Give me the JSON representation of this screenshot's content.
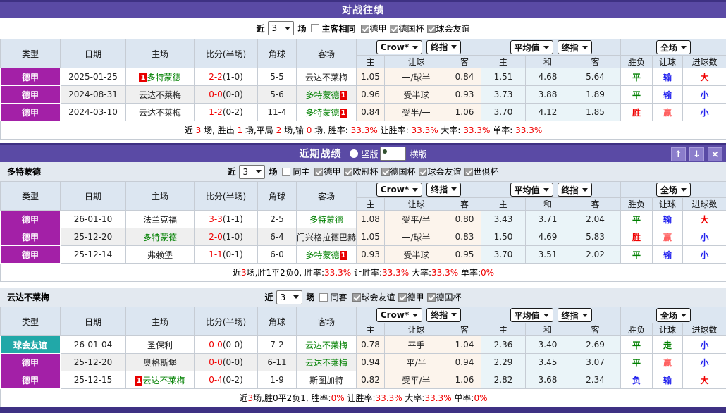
{
  "colors": {
    "green": "#008000",
    "red": "#f00000",
    "blue": "#2222ee",
    "pink": "#ff6060",
    "black": "#222222"
  },
  "header": {
    "cols": [
      "类型",
      "日期",
      "主场",
      "比分(半场)",
      "角球",
      "客场"
    ],
    "sub": [
      "主",
      "让球",
      "客",
      "主",
      "和",
      "客",
      "胜负",
      "让球",
      "进球数"
    ],
    "dd_crow": "Crow*",
    "dd_final": "终指",
    "dd_avg": "平均值",
    "dd_full": "全场"
  },
  "h2h": {
    "title": "对战往绩",
    "filter": {
      "near": "近",
      "count": "3",
      "games": "场",
      "toggle": "主客相同",
      "leagues": [
        "德甲",
        "德国杯",
        "球会友谊"
      ]
    },
    "rows": [
      {
        "league": "德甲",
        "league_bg": "#a320a7",
        "date": "2025-01-25",
        "home": {
          "name": "多特蒙德",
          "color": "green",
          "badge": "1",
          "badge_pos": "before"
        },
        "score": "2-2",
        "half": "(1-0)",
        "corner": "5-5",
        "away": {
          "name": "云达不莱梅",
          "color": "black"
        },
        "crow": [
          "1.05",
          "一/球半",
          "0.84"
        ],
        "avg": [
          "1.51",
          "4.68",
          "5.64"
        ],
        "outcome": [
          [
            "平",
            "green"
          ],
          [
            "输",
            "blue"
          ],
          [
            "大",
            "red"
          ]
        ]
      },
      {
        "league": "德甲",
        "league_bg": "#a320a7",
        "date": "2024-08-31",
        "home": {
          "name": "云达不莱梅",
          "color": "black"
        },
        "score": "0-0",
        "half": "(0-0)",
        "corner": "5-6",
        "away": {
          "name": "多特蒙德",
          "color": "green",
          "badge": "1",
          "badge_pos": "after"
        },
        "crow": [
          "0.96",
          "受半球",
          "0.93"
        ],
        "avg": [
          "3.73",
          "3.88",
          "1.89"
        ],
        "outcome": [
          [
            "平",
            "green"
          ],
          [
            "输",
            "blue"
          ],
          [
            "小",
            "blue"
          ]
        ]
      },
      {
        "league": "德甲",
        "league_bg": "#a320a7",
        "date": "2024-03-10",
        "home": {
          "name": "云达不莱梅",
          "color": "black"
        },
        "score": "1-2",
        "half": "(0-2)",
        "corner": "11-4",
        "away": {
          "name": "多特蒙德",
          "color": "green",
          "badge": "1",
          "badge_pos": "after"
        },
        "crow": [
          "0.84",
          "受半/一",
          "1.06"
        ],
        "avg": [
          "3.70",
          "4.12",
          "1.85"
        ],
        "outcome": [
          [
            "胜",
            "red"
          ],
          [
            "赢",
            "pink"
          ],
          [
            "小",
            "blue"
          ]
        ]
      }
    ],
    "summary": [
      [
        "近 ",
        "k"
      ],
      [
        "3",
        "r"
      ],
      [
        " 场, 胜出 ",
        "k"
      ],
      [
        "1",
        "r"
      ],
      [
        " 场,平局 ",
        "k"
      ],
      [
        "2",
        "r"
      ],
      [
        " 场,输 ",
        "k"
      ],
      [
        "0",
        "r"
      ],
      [
        " 场, 胜率: ",
        "k"
      ],
      [
        "33.3%",
        "r"
      ],
      [
        " 让胜率: ",
        "k"
      ],
      [
        "33.3%",
        "r"
      ],
      [
        " 大率: ",
        "k"
      ],
      [
        "33.3%",
        "r"
      ],
      [
        " 单率: ",
        "k"
      ],
      [
        "33.3%",
        "r"
      ]
    ]
  },
  "recent": {
    "title": "近期战绩",
    "radio_vertical": "竖版",
    "radio_horizontal": "横版",
    "btn_up": "↑",
    "btn_down": "↓",
    "btn_close": "×",
    "team1": {
      "name": "多特蒙德",
      "filter": {
        "near": "近",
        "count": "3",
        "games": "场",
        "toggle": "同主",
        "leagues": [
          "德甲",
          "欧冠杯",
          "德国杯",
          "球会友谊",
          "世俱杯"
        ]
      },
      "rows": [
        {
          "league": "德甲",
          "league_bg": "#a320a7",
          "date": "26-01-10",
          "home": {
            "name": "法兰克福",
            "color": "black"
          },
          "score": "3-3",
          "half": "(1-1)",
          "corner": "2-5",
          "away": {
            "name": "多特蒙德",
            "color": "green"
          },
          "crow": [
            "1.08",
            "受平/半",
            "0.80"
          ],
          "avg": [
            "3.43",
            "3.71",
            "2.04"
          ],
          "outcome": [
            [
              "平",
              "green"
            ],
            [
              "输",
              "blue"
            ],
            [
              "大",
              "red"
            ]
          ]
        },
        {
          "league": "德甲",
          "league_bg": "#a320a7",
          "date": "25-12-20",
          "home": {
            "name": "多特蒙德",
            "color": "green"
          },
          "score": "2-0",
          "half": "(1-0)",
          "corner": "6-4",
          "away": {
            "name": "门兴格拉德巴赫",
            "color": "black"
          },
          "crow": [
            "1.05",
            "一/球半",
            "0.83"
          ],
          "avg": [
            "1.50",
            "4.69",
            "5.83"
          ],
          "outcome": [
            [
              "胜",
              "red"
            ],
            [
              "赢",
              "pink"
            ],
            [
              "小",
              "blue"
            ]
          ]
        },
        {
          "league": "德甲",
          "league_bg": "#a320a7",
          "date": "25-12-14",
          "home": {
            "name": "弗赖堡",
            "color": "black"
          },
          "score": "1-1",
          "half": "(0-1)",
          "corner": "6-0",
          "away": {
            "name": "多特蒙德",
            "color": "green",
            "badge": "1",
            "badge_pos": "after"
          },
          "crow": [
            "0.93",
            "受半球",
            "0.95"
          ],
          "avg": [
            "3.70",
            "3.51",
            "2.02"
          ],
          "outcome": [
            [
              "平",
              "green"
            ],
            [
              "输",
              "blue"
            ],
            [
              "小",
              "blue"
            ]
          ]
        }
      ],
      "summary": [
        [
          "近",
          "k"
        ],
        [
          "3",
          "r"
        ],
        [
          "场,胜1平2负0, 胜率:",
          "k"
        ],
        [
          "33.3%",
          "r"
        ],
        [
          " 让胜率:",
          "k"
        ],
        [
          "33.3%",
          "r"
        ],
        [
          " 大率:",
          "k"
        ],
        [
          "33.3%",
          "r"
        ],
        [
          " 单率:",
          "k"
        ],
        [
          "0%",
          "r"
        ]
      ]
    },
    "team2": {
      "name": "云达不莱梅",
      "filter": {
        "near": "近",
        "count": "3",
        "games": "场",
        "toggle": "同客",
        "leagues": [
          "球会友谊",
          "德甲",
          "德国杯"
        ]
      },
      "rows": [
        {
          "league": "球会友谊",
          "league_bg": "#21a8a8",
          "date": "26-01-04",
          "home": {
            "name": "圣保利",
            "color": "black"
          },
          "score": "0-0",
          "half": "(0-0)",
          "corner": "7-2",
          "away": {
            "name": "云达不莱梅",
            "color": "green"
          },
          "crow": [
            "0.78",
            "平手",
            "1.04"
          ],
          "avg": [
            "2.36",
            "3.40",
            "2.69"
          ],
          "outcome": [
            [
              "平",
              "green"
            ],
            [
              "走",
              "green"
            ],
            [
              "小",
              "blue"
            ]
          ]
        },
        {
          "league": "德甲",
          "league_bg": "#a320a7",
          "date": "25-12-20",
          "home": {
            "name": "奥格斯堡",
            "color": "black"
          },
          "score": "0-0",
          "half": "(0-0)",
          "corner": "6-11",
          "away": {
            "name": "云达不莱梅",
            "color": "green"
          },
          "crow": [
            "0.94",
            "平/半",
            "0.94"
          ],
          "avg": [
            "2.29",
            "3.45",
            "3.07"
          ],
          "outcome": [
            [
              "平",
              "green"
            ],
            [
              "赢",
              "pink"
            ],
            [
              "小",
              "blue"
            ]
          ]
        },
        {
          "league": "德甲",
          "league_bg": "#a320a7",
          "date": "25-12-15",
          "home": {
            "name": "云达不莱梅",
            "color": "green",
            "badge": "1",
            "badge_pos": "before"
          },
          "score": "0-4",
          "half": "(0-2)",
          "corner": "1-9",
          "away": {
            "name": "斯图加特",
            "color": "black"
          },
          "crow": [
            "0.82",
            "受平/半",
            "1.06"
          ],
          "avg": [
            "2.82",
            "3.68",
            "2.34"
          ],
          "outcome": [
            [
              "负",
              "blue"
            ],
            [
              "输",
              "blue"
            ],
            [
              "大",
              "red"
            ]
          ]
        }
      ],
      "summary": [
        [
          "近",
          "k"
        ],
        [
          "3",
          "r"
        ],
        [
          "场,胜0平2负1, 胜率:",
          "k"
        ],
        [
          "0%",
          "r"
        ],
        [
          " 让胜率:",
          "k"
        ],
        [
          "33.3%",
          "r"
        ],
        [
          " 大率:",
          "k"
        ],
        [
          "33.3%",
          "r"
        ],
        [
          " 单率:",
          "k"
        ],
        [
          "0%",
          "r"
        ]
      ]
    }
  }
}
